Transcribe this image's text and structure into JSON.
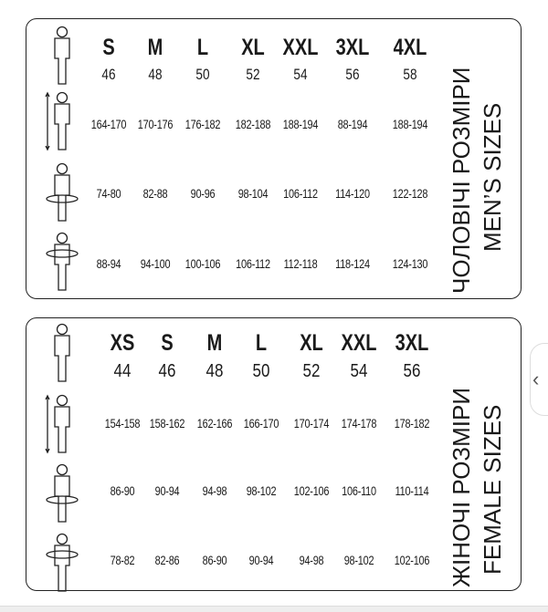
{
  "men": {
    "title_ua": "ЧОЛОВІЧІ РОЗМІРИ",
    "title_en": "MEN’S SIZES",
    "sizes": [
      "S",
      "M",
      "L",
      "XL",
      "XXL",
      "3XL",
      "4XL"
    ],
    "numbers": [
      "46",
      "48",
      "50",
      "52",
      "54",
      "56",
      "58"
    ],
    "height": [
      "164-170",
      "170-176",
      "176-182",
      "182-188",
      "188-194",
      "88-194",
      "188-194"
    ],
    "waist": [
      "74-80",
      "82-88",
      "90-96",
      "98-104",
      "106-112",
      "114-120",
      "122-128"
    ],
    "hips": [
      "88-94",
      "94-100",
      "100-106",
      "106-112",
      "112-118",
      "118-124",
      "124-130"
    ]
  },
  "women": {
    "title_ua": "ЖІНОЧІ РОЗМІРИ",
    "title_en": "FEMALE SIZES",
    "sizes": [
      "XS",
      "S",
      "M",
      "L",
      "XL",
      "XXL",
      "3XL"
    ],
    "numbers": [
      "44",
      "46",
      "48",
      "50",
      "52",
      "54",
      "56"
    ],
    "height": [
      "154-158",
      "158-162",
      "162-166",
      "166-170",
      "170-174",
      "174-178",
      "178-182"
    ],
    "waist": [
      "86-90",
      "90-94",
      "94-98",
      "98-102",
      "102-106",
      "106-110",
      "110-114"
    ],
    "hips": [
      "78-82",
      "82-86",
      "86-90",
      "90-94",
      "94-98",
      "98-102",
      "102-106"
    ]
  },
  "nav": {
    "prev_icon": "chevron-left-icon",
    "prev_glyph": "‹"
  }
}
